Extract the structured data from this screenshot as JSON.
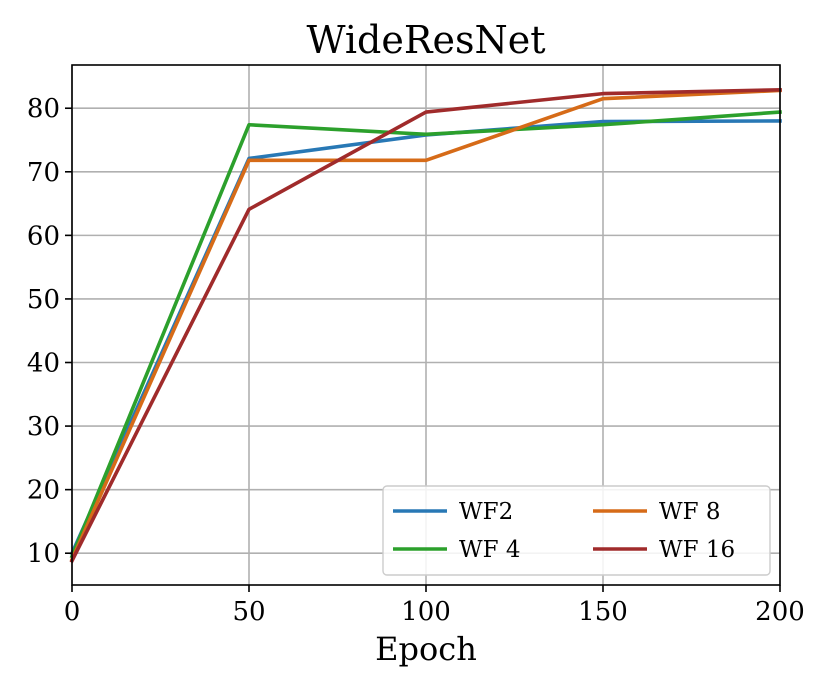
{
  "chart_data": {
    "type": "line",
    "title": "WideResNet",
    "xlabel": "Epoch",
    "ylabel": "",
    "xlim": [
      0,
      200
    ],
    "ylim": [
      5,
      86.8
    ],
    "xticks": [
      0,
      50,
      100,
      150,
      200
    ],
    "yticks": [
      10,
      20,
      30,
      40,
      50,
      60,
      70,
      80
    ],
    "grid": true,
    "legend_position": "lower-right",
    "legend_columns": 2,
    "x": [
      0,
      50,
      100,
      150,
      200
    ],
    "series": [
      {
        "name": "WF2",
        "color": "#2878b5",
        "values": [
          10.0,
          72.1,
          75.8,
          77.9,
          78.0
        ]
      },
      {
        "name": "WF 4",
        "color": "#2ca02c",
        "values": [
          9.5,
          77.4,
          75.9,
          77.4,
          79.4
        ]
      },
      {
        "name": "WF 8",
        "color": "#d66b18",
        "values": [
          9.0,
          71.8,
          71.8,
          81.5,
          82.8
        ]
      },
      {
        "name": "WF 16",
        "color": "#a02b2b",
        "values": [
          8.8,
          64.1,
          79.4,
          82.3,
          82.9
        ]
      }
    ]
  }
}
